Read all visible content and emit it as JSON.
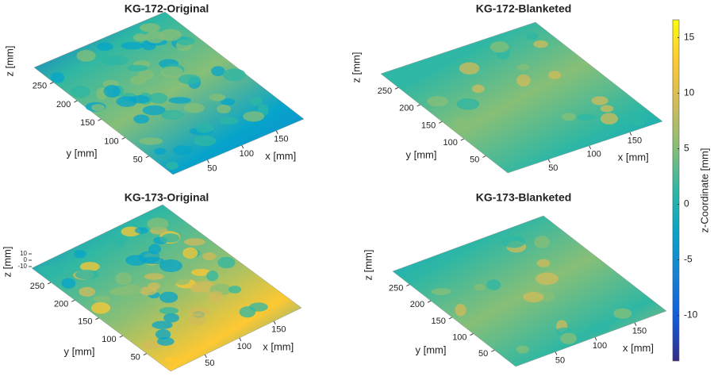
{
  "chart_data": [
    {
      "type": "surface3d",
      "title": "KG-172-Original",
      "xlabel": "x [mm]",
      "ylabel": "y [mm]",
      "zlabel": "z [mm]",
      "xlim": [
        0,
        190
      ],
      "xticks": [
        50,
        100,
        150
      ],
      "ylim": [
        0,
        290
      ],
      "yticks": [
        50,
        100,
        150,
        200,
        250
      ]
    },
    {
      "type": "surface3d",
      "title": "KG-172-Blanketed",
      "xlabel": "x [mm]",
      "ylabel": "y [mm]",
      "zlabel": "z [mm]",
      "xlim": [
        0,
        190
      ],
      "xticks": [
        50,
        100,
        150
      ],
      "ylim": [
        0,
        290
      ],
      "yticks": [
        50,
        100,
        150,
        200,
        250
      ]
    },
    {
      "type": "surface3d",
      "title": "KG-173-Original",
      "xlabel": "x [mm]",
      "ylabel": "y [mm]",
      "zlabel": "z [mm]",
      "xlim": [
        0,
        190
      ],
      "xticks": [
        50,
        100,
        150
      ],
      "ylim": [
        0,
        290
      ],
      "yticks": [
        50,
        100,
        150,
        200,
        250
      ],
      "zlim": [
        -15,
        15
      ],
      "zticks": [
        -10,
        0,
        10
      ]
    },
    {
      "type": "surface3d",
      "title": "KG-173-Blanketed",
      "xlabel": "x [mm]",
      "ylabel": "y [mm]",
      "zlabel": "z [mm]",
      "xlim": [
        0,
        190
      ],
      "xticks": [
        50,
        100,
        150
      ],
      "ylim": [
        0,
        290
      ],
      "yticks": [
        50,
        100,
        150,
        200,
        250
      ]
    },
    {
      "type": "colorbar",
      "label": "z-Coordinate [mm]",
      "clim": [
        -14.1,
        16.6
      ],
      "ticks": [
        -10,
        -5,
        0,
        5,
        10,
        15
      ],
      "colormap": [
        "#352a87",
        "#0f5cdd",
        "#1481d6",
        "#06a4ca",
        "#2eb7a4",
        "#87bf77",
        "#d1bb59",
        "#fec832",
        "#f9fb0e"
      ]
    }
  ]
}
